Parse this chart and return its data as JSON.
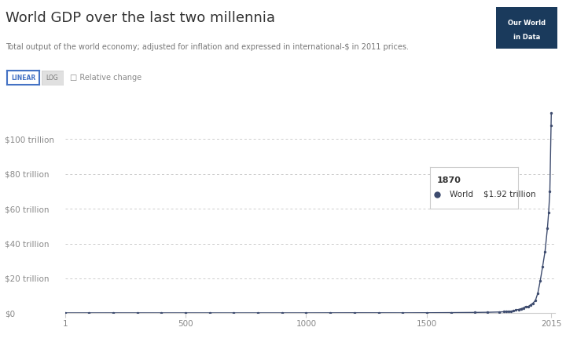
{
  "title": "World GDP over the last two millennia",
  "subtitle": "Total output of the world economy; adjusted for inflation and expressed in international-$ in 2011 prices.",
  "background_color": "#ffffff",
  "line_color": "#3d4b6e",
  "dot_color": "#3d4b6e",
  "ytick_labels": [
    "$0",
    "$20 trillion",
    "$40 trillion",
    "$60 trillion",
    "$80 trillion",
    "$100 trillion"
  ],
  "ytick_values": [
    0,
    20,
    40,
    60,
    80,
    100
  ],
  "xtick_labels": [
    "1",
    "500",
    "1000",
    "1500",
    "2015"
  ],
  "xtick_values": [
    1,
    500,
    1000,
    1500,
    2015
  ],
  "logo_bg": "#1a3a5c",
  "logo_text_color": "#ffffff",
  "grid_color": "#cccccc",
  "axis_color": "#cccccc",
  "years": [
    1,
    100,
    200,
    300,
    400,
    500,
    600,
    700,
    800,
    900,
    1000,
    1100,
    1200,
    1300,
    1400,
    1500,
    1600,
    1700,
    1750,
    1800,
    1820,
    1830,
    1840,
    1850,
    1860,
    1870,
    1880,
    1890,
    1900,
    1910,
    1920,
    1930,
    1940,
    1950,
    1960,
    1970,
    1980,
    1990,
    2000,
    2005,
    2010,
    2015,
    2016
  ],
  "gdp": [
    0.183,
    0.19,
    0.195,
    0.19,
    0.185,
    0.185,
    0.18,
    0.178,
    0.18,
    0.185,
    0.19,
    0.22,
    0.24,
    0.23,
    0.21,
    0.26,
    0.34,
    0.44,
    0.53,
    0.69,
    0.84,
    0.95,
    1.05,
    1.18,
    1.38,
    1.92,
    2.17,
    2.55,
    3.04,
    3.81,
    3.79,
    4.8,
    5.78,
    7.27,
    11.5,
    18.5,
    26.8,
    35.5,
    49.0,
    58.0,
    70.0,
    108.0,
    115.0
  ]
}
